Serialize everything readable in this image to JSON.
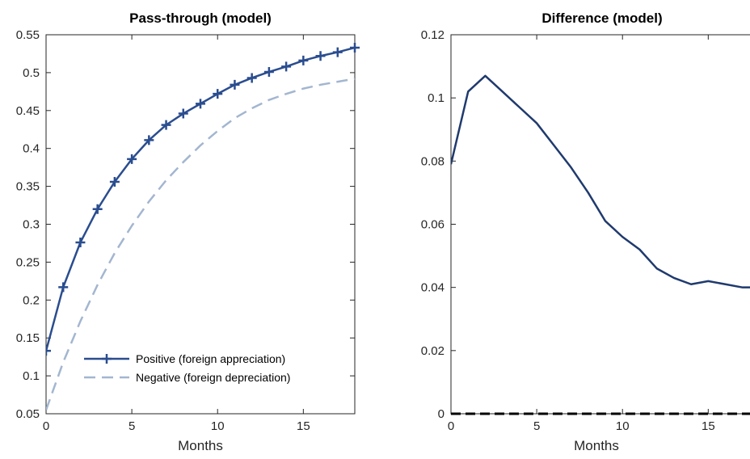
{
  "chart_data": [
    {
      "type": "line",
      "title": "Pass-through (model)",
      "xlabel": "Months",
      "ylabel": "",
      "xlim": [
        0,
        18
      ],
      "ylim": [
        0.05,
        0.55
      ],
      "xticks": [
        "0",
        "5",
        "10",
        "15"
      ],
      "yticks": [
        "0.05",
        "0.1",
        "0.15",
        "0.2",
        "0.25",
        "0.3",
        "0.35",
        "0.4",
        "0.45",
        "0.5",
        "0.55"
      ],
      "grid": false,
      "legend_position": "bottom-right",
      "series": [
        {
          "name": "Positive (foreign appreciation)",
          "color": "#2a4d8f",
          "style": "solid-plus-markers",
          "x": [
            0,
            1,
            2,
            3,
            4,
            5,
            6,
            7,
            8,
            9,
            10,
            11,
            12,
            13,
            14,
            15,
            16,
            17,
            18
          ],
          "y": [
            0.133,
            0.217,
            0.276,
            0.32,
            0.356,
            0.386,
            0.411,
            0.431,
            0.446,
            0.459,
            0.472,
            0.484,
            0.493,
            0.501,
            0.508,
            0.516,
            0.522,
            0.527,
            0.533
          ]
        },
        {
          "name": "Negative (foreign depreciation)",
          "color": "#a3b6d0",
          "style": "dashed",
          "x": [
            0,
            1,
            2,
            3,
            4,
            5,
            6,
            7,
            8,
            9,
            10,
            11,
            12,
            13,
            14,
            15,
            16,
            17,
            18
          ],
          "y": [
            0.055,
            0.118,
            0.172,
            0.22,
            0.262,
            0.298,
            0.33,
            0.358,
            0.382,
            0.404,
            0.423,
            0.44,
            0.453,
            0.464,
            0.472,
            0.479,
            0.484,
            0.488,
            0.492
          ]
        }
      ]
    },
    {
      "type": "line",
      "title": "Difference (model)",
      "xlabel": "Months",
      "ylabel": "",
      "xlim": [
        0,
        18
      ],
      "ylim": [
        0,
        0.12
      ],
      "xticks": [
        "0",
        "5",
        "10",
        "15"
      ],
      "yticks": [
        "0",
        "0.02",
        "0.04",
        "0.06",
        "0.08",
        "0.1",
        "0.12"
      ],
      "grid": false,
      "series": [
        {
          "color": "#1f3a6e",
          "style": "solid",
          "x": [
            0,
            1,
            2,
            3,
            4,
            5,
            6,
            7,
            8,
            9,
            10,
            11,
            12,
            13,
            14,
            15,
            16,
            17,
            18
          ],
          "y": [
            0.079,
            0.102,
            0.107,
            0.102,
            0.097,
            0.092,
            0.085,
            0.078,
            0.07,
            0.061,
            0.056,
            0.052,
            0.046,
            0.043,
            0.041,
            0.042,
            0.041,
            0.04,
            0.04
          ]
        },
        {
          "color": "#000000",
          "style": "dashed-zero",
          "x": [
            0,
            18
          ],
          "y": [
            0,
            0
          ]
        }
      ]
    }
  ]
}
